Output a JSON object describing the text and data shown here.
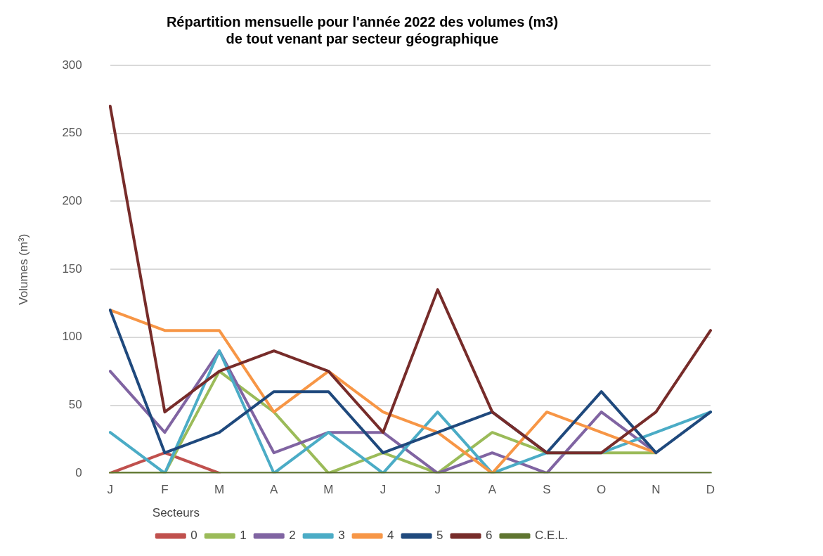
{
  "chart_data": {
    "type": "line",
    "title": "Répartition mensuelle pour l'année 2022 des volumes (m3)\nde tout venant par secteur géographique",
    "ylabel": "Volumes (m³)",
    "legend_title": "Secteurs",
    "categories": [
      "J",
      "F",
      "M",
      "A",
      "M",
      "J",
      "J",
      "A",
      "S",
      "O",
      "N",
      "D"
    ],
    "series": [
      {
        "name": "0",
        "color": "#c0504d",
        "values": [
          0,
          15,
          0,
          null,
          null,
          null,
          null,
          null,
          null,
          null,
          null,
          null
        ]
      },
      {
        "name": "1",
        "color": "#9bbb59",
        "values": [
          0,
          0,
          75,
          45,
          0,
          15,
          0,
          30,
          15,
          15,
          15,
          null
        ]
      },
      {
        "name": "2",
        "color": "#8064a2",
        "values": [
          75,
          30,
          90,
          15,
          30,
          30,
          0,
          15,
          0,
          45,
          15,
          null
        ]
      },
      {
        "name": "3",
        "color": "#4bacc6",
        "values": [
          30,
          0,
          90,
          0,
          30,
          0,
          45,
          0,
          15,
          15,
          30,
          45
        ]
      },
      {
        "name": "4",
        "color": "#f79646",
        "values": [
          120,
          105,
          105,
          45,
          75,
          45,
          30,
          0,
          45,
          30,
          15,
          null
        ]
      },
      {
        "name": "5",
        "color": "#1f497d",
        "values": [
          120,
          15,
          30,
          60,
          60,
          15,
          30,
          45,
          15,
          60,
          15,
          45
        ]
      },
      {
        "name": "6",
        "color": "#772c2a",
        "values": [
          270,
          45,
          75,
          90,
          75,
          30,
          135,
          45,
          15,
          15,
          45,
          105
        ]
      },
      {
        "name": "C.E.L.",
        "color": "#5f7530",
        "values": [
          0,
          0,
          0,
          0,
          0,
          0,
          0,
          0,
          0,
          0,
          0,
          0
        ]
      }
    ],
    "ylim": [
      0,
      300
    ],
    "yticks": [
      0,
      50,
      100,
      150,
      200,
      250,
      300
    ],
    "grid": "y",
    "legend": "bottom",
    "marker": "none",
    "line_style": "solid"
  }
}
